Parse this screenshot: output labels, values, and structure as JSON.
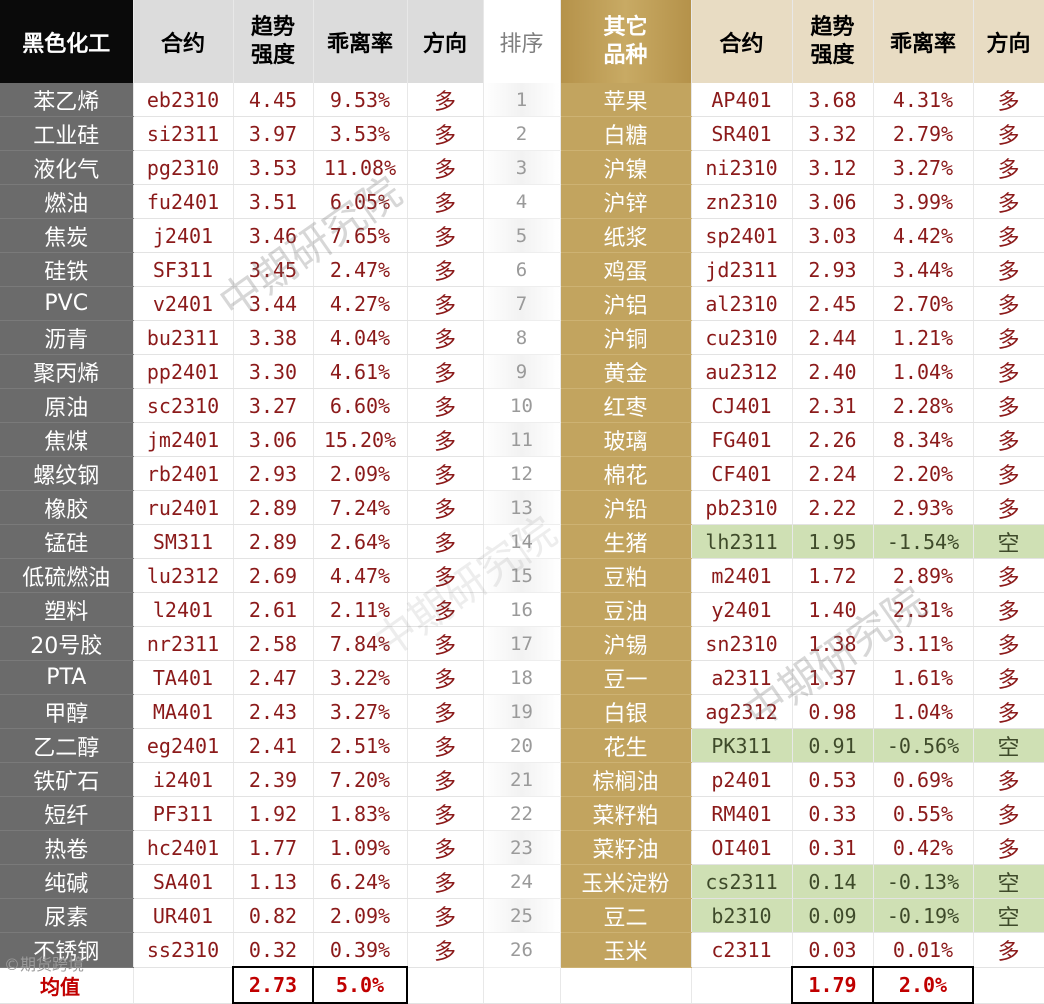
{
  "header": {
    "left": {
      "category": "黑色化工",
      "contract": "合约",
      "strength_1": "趋势",
      "strength_2": "强度",
      "deviation": "乖离率",
      "direction": "方向"
    },
    "rank": "排序",
    "right": {
      "category_1": "其它",
      "category_2": "品种",
      "contract": "合约",
      "strength_1": "趋势",
      "strength_2": "强度",
      "deviation": "乖离率",
      "direction": "方向"
    }
  },
  "rows": [
    {
      "rank": "1",
      "l": {
        "name": "苯乙烯",
        "contract": "eb2310",
        "strength": "4.45",
        "deviation": "9.53%",
        "direction": "多"
      },
      "r": {
        "name": "苹果",
        "contract": "AP401",
        "strength": "3.68",
        "deviation": "4.31%",
        "direction": "多"
      }
    },
    {
      "rank": "2",
      "l": {
        "name": "工业硅",
        "contract": "si2311",
        "strength": "3.97",
        "deviation": "3.53%",
        "direction": "多"
      },
      "r": {
        "name": "白糖",
        "contract": "SR401",
        "strength": "3.32",
        "deviation": "2.79%",
        "direction": "多"
      }
    },
    {
      "rank": "3",
      "l": {
        "name": "液化气",
        "contract": "pg2310",
        "strength": "3.53",
        "deviation": "11.08%",
        "direction": "多"
      },
      "r": {
        "name": "沪镍",
        "contract": "ni2310",
        "strength": "3.12",
        "deviation": "3.27%",
        "direction": "多"
      }
    },
    {
      "rank": "4",
      "l": {
        "name": "燃油",
        "contract": "fu2401",
        "strength": "3.51",
        "deviation": "6.05%",
        "direction": "多"
      },
      "r": {
        "name": "沪锌",
        "contract": "zn2310",
        "strength": "3.06",
        "deviation": "3.99%",
        "direction": "多"
      }
    },
    {
      "rank": "5",
      "l": {
        "name": "焦炭",
        "contract": "j2401",
        "strength": "3.46",
        "deviation": "7.65%",
        "direction": "多"
      },
      "r": {
        "name": "纸浆",
        "contract": "sp2401",
        "strength": "3.03",
        "deviation": "4.42%",
        "direction": "多"
      }
    },
    {
      "rank": "6",
      "l": {
        "name": "硅铁",
        "contract": "SF311",
        "strength": "3.45",
        "deviation": "2.47%",
        "direction": "多"
      },
      "r": {
        "name": "鸡蛋",
        "contract": "jd2311",
        "strength": "2.93",
        "deviation": "3.44%",
        "direction": "多"
      }
    },
    {
      "rank": "7",
      "l": {
        "name": "PVC",
        "contract": "v2401",
        "strength": "3.44",
        "deviation": "4.27%",
        "direction": "多"
      },
      "r": {
        "name": "沪铝",
        "contract": "al2310",
        "strength": "2.45",
        "deviation": "2.70%",
        "direction": "多"
      }
    },
    {
      "rank": "8",
      "l": {
        "name": "沥青",
        "contract": "bu2311",
        "strength": "3.38",
        "deviation": "4.04%",
        "direction": "多"
      },
      "r": {
        "name": "沪铜",
        "contract": "cu2310",
        "strength": "2.44",
        "deviation": "1.21%",
        "direction": "多"
      }
    },
    {
      "rank": "9",
      "l": {
        "name": "聚丙烯",
        "contract": "pp2401",
        "strength": "3.30",
        "deviation": "4.61%",
        "direction": "多"
      },
      "r": {
        "name": "黄金",
        "contract": "au2312",
        "strength": "2.40",
        "deviation": "1.04%",
        "direction": "多"
      }
    },
    {
      "rank": "10",
      "l": {
        "name": "原油",
        "contract": "sc2310",
        "strength": "3.27",
        "deviation": "6.60%",
        "direction": "多"
      },
      "r": {
        "name": "红枣",
        "contract": "CJ401",
        "strength": "2.31",
        "deviation": "2.28%",
        "direction": "多"
      }
    },
    {
      "rank": "11",
      "l": {
        "name": "焦煤",
        "contract": "jm2401",
        "strength": "3.06",
        "deviation": "15.20%",
        "direction": "多"
      },
      "r": {
        "name": "玻璃",
        "contract": "FG401",
        "strength": "2.26",
        "deviation": "8.34%",
        "direction": "多"
      }
    },
    {
      "rank": "12",
      "l": {
        "name": "螺纹钢",
        "contract": "rb2401",
        "strength": "2.93",
        "deviation": "2.09%",
        "direction": "多"
      },
      "r": {
        "name": "棉花",
        "contract": "CF401",
        "strength": "2.24",
        "deviation": "2.20%",
        "direction": "多"
      }
    },
    {
      "rank": "13",
      "l": {
        "name": "橡胶",
        "contract": "ru2401",
        "strength": "2.89",
        "deviation": "7.24%",
        "direction": "多"
      },
      "r": {
        "name": "沪铅",
        "contract": "pb2310",
        "strength": "2.22",
        "deviation": "2.93%",
        "direction": "多"
      }
    },
    {
      "rank": "14",
      "l": {
        "name": "锰硅",
        "contract": "SM311",
        "strength": "2.89",
        "deviation": "2.64%",
        "direction": "多"
      },
      "r": {
        "name": "生猪",
        "contract": "lh2311",
        "strength": "1.95",
        "deviation": "-1.54%",
        "direction": "空"
      }
    },
    {
      "rank": "15",
      "l": {
        "name": "低硫燃油",
        "contract": "lu2312",
        "strength": "2.69",
        "deviation": "4.47%",
        "direction": "多"
      },
      "r": {
        "name": "豆粕",
        "contract": "m2401",
        "strength": "1.72",
        "deviation": "2.89%",
        "direction": "多"
      }
    },
    {
      "rank": "16",
      "l": {
        "name": "塑料",
        "contract": "l2401",
        "strength": "2.61",
        "deviation": "2.11%",
        "direction": "多"
      },
      "r": {
        "name": "豆油",
        "contract": "y2401",
        "strength": "1.40",
        "deviation": "2.31%",
        "direction": "多"
      }
    },
    {
      "rank": "17",
      "l": {
        "name": "20号胶",
        "contract": "nr2311",
        "strength": "2.58",
        "deviation": "7.84%",
        "direction": "多"
      },
      "r": {
        "name": "沪锡",
        "contract": "sn2310",
        "strength": "1.38",
        "deviation": "3.11%",
        "direction": "多"
      }
    },
    {
      "rank": "18",
      "l": {
        "name": "PTA",
        "contract": "TA401",
        "strength": "2.47",
        "deviation": "3.22%",
        "direction": "多"
      },
      "r": {
        "name": "豆一",
        "contract": "a2311",
        "strength": "1.37",
        "deviation": "1.61%",
        "direction": "多"
      }
    },
    {
      "rank": "19",
      "l": {
        "name": "甲醇",
        "contract": "MA401",
        "strength": "2.43",
        "deviation": "3.27%",
        "direction": "多"
      },
      "r": {
        "name": "白银",
        "contract": "ag2312",
        "strength": "0.98",
        "deviation": "1.04%",
        "direction": "多"
      }
    },
    {
      "rank": "20",
      "l": {
        "name": "乙二醇",
        "contract": "eg2401",
        "strength": "2.41",
        "deviation": "2.51%",
        "direction": "多"
      },
      "r": {
        "name": "花生",
        "contract": "PK311",
        "strength": "0.91",
        "deviation": "-0.56%",
        "direction": "空"
      }
    },
    {
      "rank": "21",
      "l": {
        "name": "铁矿石",
        "contract": "i2401",
        "strength": "2.39",
        "deviation": "7.20%",
        "direction": "多"
      },
      "r": {
        "name": "棕榈油",
        "contract": "p2401",
        "strength": "0.53",
        "deviation": "0.69%",
        "direction": "多"
      }
    },
    {
      "rank": "22",
      "l": {
        "name": "短纤",
        "contract": "PF311",
        "strength": "1.92",
        "deviation": "1.83%",
        "direction": "多"
      },
      "r": {
        "name": "菜籽粕",
        "contract": "RM401",
        "strength": "0.33",
        "deviation": "0.55%",
        "direction": "多"
      }
    },
    {
      "rank": "23",
      "l": {
        "name": "热卷",
        "contract": "hc2401",
        "strength": "1.77",
        "deviation": "1.09%",
        "direction": "多"
      },
      "r": {
        "name": "菜籽油",
        "contract": "OI401",
        "strength": "0.31",
        "deviation": "0.42%",
        "direction": "多"
      }
    },
    {
      "rank": "24",
      "l": {
        "name": "纯碱",
        "contract": "SA401",
        "strength": "1.13",
        "deviation": "6.24%",
        "direction": "多"
      },
      "r": {
        "name": "玉米淀粉",
        "contract": "cs2311",
        "strength": "0.14",
        "deviation": "-0.13%",
        "direction": "空"
      }
    },
    {
      "rank": "25",
      "l": {
        "name": "尿素",
        "contract": "UR401",
        "strength": "0.82",
        "deviation": "2.09%",
        "direction": "多"
      },
      "r": {
        "name": "豆二",
        "contract": "b2310",
        "strength": "0.09",
        "deviation": "-0.19%",
        "direction": "空"
      }
    },
    {
      "rank": "26",
      "l": {
        "name": "不锈钢",
        "contract": "ss2310",
        "strength": "0.32",
        "deviation": "0.39%",
        "direction": "多"
      },
      "r": {
        "name": "玉米",
        "contract": "c2311",
        "strength": "0.03",
        "deviation": "0.01%",
        "direction": "多"
      }
    }
  ],
  "footer": {
    "label": "均值",
    "left_strength": "2.73",
    "left_deviation": "5.0%",
    "right_strength": "1.79",
    "right_deviation": "2.0%"
  },
  "watermarks": [
    "中期研究院",
    "中期研究院",
    "中期研究院"
  ],
  "corner_text": "©期货跨境",
  "colors": {
    "accent_red": "#8b1a1a",
    "short_highlight": "#cfe0b4",
    "gold": "#c2a45f",
    "dark_gray": "#6b6b6b"
  }
}
